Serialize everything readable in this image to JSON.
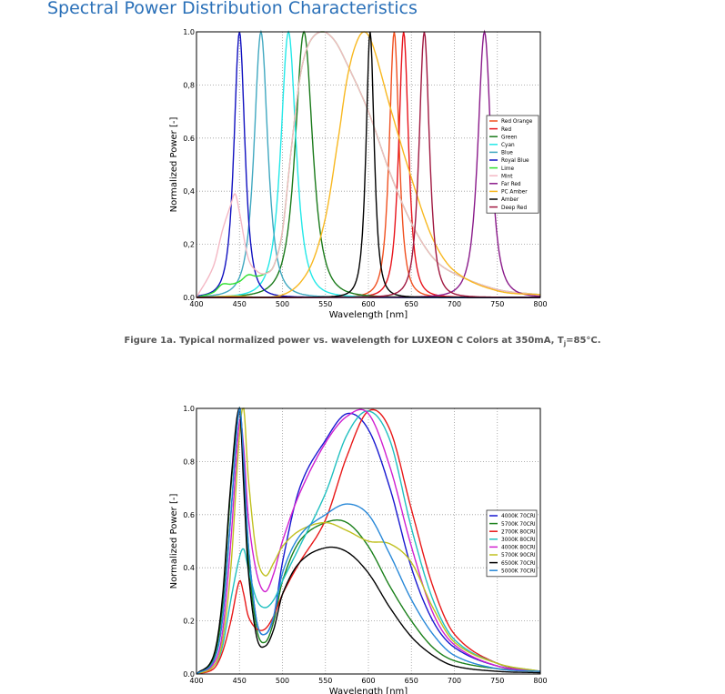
{
  "page": {
    "title": "Spectral Power Distribution Characteristics",
    "figure_caption": {
      "text": "Figure 1a. Typical normalized power vs. wavelength for LUXEON C Colors at 350mA, T",
      "subscript": "j",
      "suffix": "=85°C."
    }
  },
  "chart_data": [
    {
      "type": "line",
      "title": "",
      "xlabel": "Wavelength [nm]",
      "ylabel": "Normalized Power [-]",
      "xlim": [
        400,
        800
      ],
      "ylim": [
        0,
        1.0
      ],
      "xticks": [
        "400",
        "450",
        "500",
        "550",
        "600",
        "650",
        "700",
        "750",
        "800"
      ],
      "yticks": [
        "0.0",
        "0,2",
        "0,4",
        "0.6",
        "0,8",
        "1.0"
      ],
      "grid": true,
      "legend_position": "right",
      "series": [
        {
          "name": "Red Orange",
          "color": "#f05020",
          "peak_nm": 630,
          "fwhm_nm": 18
        },
        {
          "name": "Red",
          "color": "#e8141c",
          "peak_nm": 641,
          "fwhm_nm": 18
        },
        {
          "name": "Green",
          "color": "#1a7a1a",
          "peak_nm": 525,
          "fwhm_nm": 32
        },
        {
          "name": "Cyan",
          "color": "#22e8e8",
          "peak_nm": 507,
          "fwhm_nm": 28
        },
        {
          "name": "Blue",
          "color": "#40a8c0",
          "peak_nm": 475,
          "fwhm_nm": 25
        },
        {
          "name": "Royal Blue",
          "color": "#1010c0",
          "peak_nm": 450,
          "fwhm_nm": 20
        },
        {
          "name": "Lime",
          "color": "#30e030",
          "x": [
            400,
            420,
            430,
            440,
            450,
            460,
            470,
            480,
            490,
            500,
            510,
            520,
            530,
            545,
            560,
            575,
            600,
            625,
            650,
            675,
            700,
            750,
            800
          ],
          "y": [
            0,
            0.02,
            0.05,
            0.05,
            0.06,
            0.085,
            0.08,
            0.09,
            0.12,
            0.25,
            0.55,
            0.82,
            0.95,
            1.0,
            0.97,
            0.88,
            0.7,
            0.47,
            0.28,
            0.15,
            0.09,
            0.03,
            0.01
          ]
        },
        {
          "name": "Mint",
          "color": "#f4b8c4",
          "x": [
            400,
            420,
            430,
            440,
            445,
            450,
            460,
            470,
            480,
            490,
            500,
            510,
            520,
            530,
            545,
            560,
            575,
            600,
            625,
            650,
            675,
            700,
            750,
            800
          ],
          "y": [
            0,
            0.12,
            0.25,
            0.35,
            0.39,
            0.32,
            0.15,
            0.1,
            0.09,
            0.12,
            0.25,
            0.55,
            0.82,
            0.95,
            1.0,
            0.97,
            0.88,
            0.7,
            0.47,
            0.28,
            0.15,
            0.09,
            0.03,
            0.01
          ]
        },
        {
          "name": "Far Red",
          "color": "#8a1a8a",
          "peak_nm": 735,
          "fwhm_nm": 24
        },
        {
          "name": "PC Amber",
          "color": "#f8b820",
          "x": [
            400,
            440,
            500,
            530,
            550,
            565,
            575,
            585,
            595,
            605,
            625,
            650,
            675,
            700,
            750,
            800
          ],
          "y": [
            0,
            0.005,
            0.01,
            0.1,
            0.3,
            0.6,
            0.82,
            0.95,
            1.0,
            0.95,
            0.72,
            0.45,
            0.22,
            0.1,
            0.025,
            0.01
          ]
        },
        {
          "name": "Amber",
          "color": "#000000",
          "peak_nm": 602,
          "fwhm_nm": 15
        },
        {
          "name": "Deep Red",
          "color": "#a01840",
          "peak_nm": 665,
          "fwhm_nm": 19
        }
      ]
    },
    {
      "type": "line",
      "title": "",
      "xlabel": "Wavelength [nm]",
      "ylabel": "Normalized Power [-]",
      "xlim": [
        400,
        800
      ],
      "ylim": [
        0,
        1.0
      ],
      "xticks": [
        "400",
        "450",
        "500",
        "550",
        "600",
        "650",
        "700",
        "750",
        "800"
      ],
      "yticks": [
        "0.0",
        "0.2",
        "0.4",
        "0.6",
        "0.8",
        "1.0"
      ],
      "grid": true,
      "legend_position": "right",
      "x": [
        400,
        420,
        430,
        440,
        450,
        455,
        460,
        470,
        480,
        490,
        500,
        520,
        550,
        575,
        600,
        625,
        650,
        675,
        700,
        750,
        800
      ],
      "series": [
        {
          "name": "4000K 70CRI",
          "color": "#1818d0",
          "y": [
            0,
            0.05,
            0.2,
            0.6,
            1.0,
            0.8,
            0.5,
            0.2,
            0.15,
            0.22,
            0.42,
            0.7,
            0.88,
            0.98,
            0.92,
            0.7,
            0.4,
            0.2,
            0.1,
            0.03,
            0.01
          ]
        },
        {
          "name": "5700K 70CRI",
          "color": "#1a801a",
          "y": [
            0,
            0.06,
            0.25,
            0.7,
            1.0,
            0.75,
            0.45,
            0.17,
            0.12,
            0.2,
            0.35,
            0.5,
            0.57,
            0.57,
            0.48,
            0.33,
            0.2,
            0.1,
            0.05,
            0.02,
            0.01
          ]
        },
        {
          "name": "2700K 80CRI",
          "color": "#e81818",
          "y": [
            0,
            0.02,
            0.08,
            0.2,
            0.35,
            0.3,
            0.22,
            0.17,
            0.17,
            0.22,
            0.3,
            0.42,
            0.58,
            0.82,
            0.99,
            0.92,
            0.62,
            0.33,
            0.15,
            0.04,
            0.01
          ]
        },
        {
          "name": "3000K 80CRI",
          "color": "#20c0c0",
          "y": [
            0,
            0.03,
            0.1,
            0.28,
            0.44,
            0.47,
            0.4,
            0.28,
            0.25,
            0.28,
            0.35,
            0.48,
            0.68,
            0.9,
            0.99,
            0.88,
            0.55,
            0.28,
            0.13,
            0.04,
            0.01
          ]
        },
        {
          "name": "4000K 80CRI",
          "color": "#d020d0",
          "y": [
            0,
            0.04,
            0.15,
            0.5,
            0.95,
            0.85,
            0.6,
            0.38,
            0.31,
            0.38,
            0.5,
            0.68,
            0.87,
            0.97,
            0.98,
            0.78,
            0.48,
            0.23,
            0.11,
            0.03,
            0.01
          ]
        },
        {
          "name": "5700K 90CRI",
          "color": "#c0c020",
          "y": [
            0,
            0.03,
            0.12,
            0.4,
            0.9,
            1.0,
            0.75,
            0.45,
            0.37,
            0.42,
            0.48,
            0.54,
            0.57,
            0.54,
            0.5,
            0.49,
            0.42,
            0.25,
            0.12,
            0.04,
            0.01
          ]
        },
        {
          "name": "6500K 70CRI",
          "color": "#000000",
          "y": [
            0,
            0.07,
            0.28,
            0.72,
            1.0,
            0.7,
            0.4,
            0.14,
            0.105,
            0.17,
            0.3,
            0.42,
            0.475,
            0.46,
            0.38,
            0.25,
            0.14,
            0.07,
            0.03,
            0.01,
            0.005
          ]
        },
        {
          "name": "5000K 70CRI",
          "color": "#2888d8",
          "y": [
            0,
            0.05,
            0.2,
            0.6,
            1.0,
            0.8,
            0.5,
            0.2,
            0.15,
            0.22,
            0.38,
            0.52,
            0.6,
            0.64,
            0.6,
            0.45,
            0.28,
            0.15,
            0.07,
            0.02,
            0.01
          ]
        }
      ]
    }
  ]
}
